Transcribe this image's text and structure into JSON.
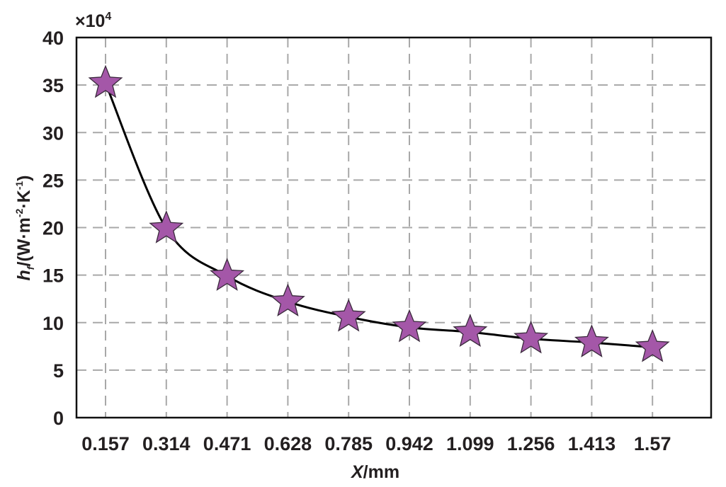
{
  "chart_data": {
    "type": "line",
    "title": "",
    "xlabel": "X/mm",
    "xlabel_parts": {
      "italic": "X",
      "rest": "/mm"
    },
    "ylabel": "h_f/(W·m^-2·K^-1)",
    "ylabel_parts": {
      "main": "h",
      "sub": "f",
      "rest1": "/(W·m",
      "sup1": "-2",
      "rest2": "·K",
      "sup2": "-1",
      "close": ")"
    },
    "y_multiplier": "×10^4",
    "y_multiplier_parts": {
      "base": "×10",
      "exp": "4"
    },
    "categories": [
      "0.157",
      "0.314",
      "0.471",
      "0.628",
      "0.785",
      "0.942",
      "1.099",
      "1.256",
      "1.413",
      "1.57"
    ],
    "x": [
      0.157,
      0.314,
      0.471,
      0.628,
      0.785,
      0.942,
      1.099,
      1.256,
      1.413,
      1.57
    ],
    "series": [
      {
        "name": "h_f",
        "values": [
          35.2,
          19.9,
          14.9,
          12.2,
          10.6,
          9.5,
          9.0,
          8.3,
          7.9,
          7.4
        ],
        "marker": "star",
        "marker_color": "#A457A8",
        "marker_edge": "#3a2a3c",
        "line_color": "#000000",
        "smooth": true
      }
    ],
    "ylim": [
      0,
      40
    ],
    "yticks": [
      0,
      5,
      10,
      15,
      20,
      25,
      30,
      35,
      40
    ],
    "grid": {
      "on": true,
      "style": "dashed",
      "color": "#a8a8a8"
    },
    "legend": null
  }
}
